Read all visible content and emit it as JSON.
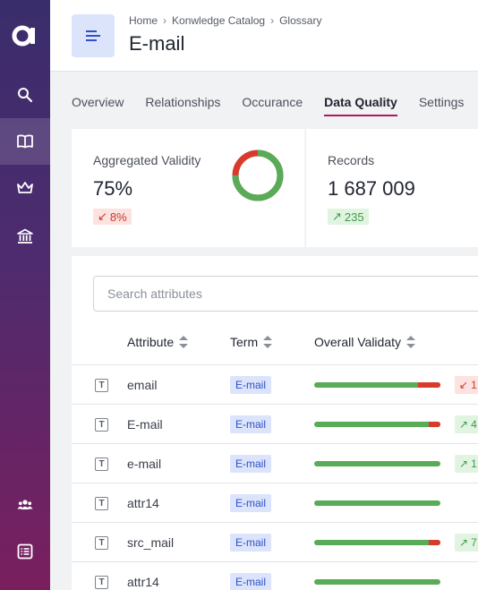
{
  "colors": {
    "accent": "#b3175f",
    "good": "#58ab57",
    "bad": "#d83a2c",
    "term_bg": "#dbe4fb",
    "term_text": "#2f50c8"
  },
  "sidebar": {
    "logo": "a",
    "items": [
      {
        "icon": "search-icon",
        "active": false
      },
      {
        "icon": "book-icon",
        "active": true
      },
      {
        "icon": "crown-icon",
        "active": false
      },
      {
        "icon": "bank-icon",
        "active": false
      },
      {
        "icon": "users-icon",
        "active": false
      },
      {
        "icon": "list-icon",
        "active": false
      }
    ]
  },
  "header": {
    "icon": "text-lines-icon",
    "breadcrumbs": [
      "Home",
      "Konwledge Catalog",
      "Glossary"
    ],
    "title": "E-mail"
  },
  "tabs": [
    "Overview",
    "Relationships",
    "Occurance",
    "Data Quality",
    "Settings"
  ],
  "active_tab": "Data Quality",
  "cards": {
    "validity": {
      "label": "Aggregated Validity",
      "value": "75%",
      "delta": "8%",
      "delta_dir": "down",
      "valid_fraction": 0.75
    },
    "records": {
      "label": "Records",
      "value": "1 687 009",
      "delta": "235",
      "delta_dir": "up"
    }
  },
  "search": {
    "placeholder": "Search attributes"
  },
  "table": {
    "columns": [
      "Attribute",
      "Term",
      "Overall Validaty"
    ],
    "rows": [
      {
        "attribute": "email",
        "term": "E-mail",
        "validity": 0.82,
        "delta": "1",
        "delta_dir": "down"
      },
      {
        "attribute": "E-mail",
        "term": "E-mail",
        "validity": 0.91,
        "delta": "4",
        "delta_dir": "up"
      },
      {
        "attribute": "e-mail",
        "term": "E-mail",
        "validity": 1.0,
        "delta": "1",
        "delta_dir": "up"
      },
      {
        "attribute": "attr14",
        "term": "E-mail",
        "validity": 1.0,
        "delta": "",
        "delta_dir": ""
      },
      {
        "attribute": "src_mail",
        "term": "E-mail",
        "validity": 0.91,
        "delta": "7",
        "delta_dir": "up"
      },
      {
        "attribute": "attr14",
        "term": "E-mail",
        "validity": 1.0,
        "delta": "",
        "delta_dir": ""
      }
    ]
  }
}
